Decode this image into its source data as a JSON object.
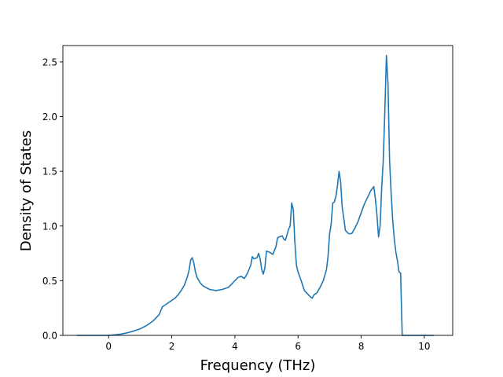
{
  "chart_data": {
    "type": "line",
    "title": "",
    "xlabel": "Frequency (THz)",
    "ylabel": "Density of States",
    "xlim": [
      -1.45,
      10.9
    ],
    "ylim": [
      0.0,
      2.65
    ],
    "xticks": [
      0,
      2,
      4,
      6,
      8,
      10
    ],
    "xtick_labels": [
      "0",
      "2",
      "4",
      "6",
      "8",
      "10"
    ],
    "yticks": [
      0.0,
      0.5,
      1.0,
      1.5,
      2.0,
      2.5
    ],
    "ytick_labels": [
      "0.0",
      "0.5",
      "1.0",
      "1.5",
      "2.0",
      "2.5"
    ],
    "grid": false,
    "legend": "none",
    "series": [
      {
        "color": "#1f77b4",
        "x": [
          -1.0,
          -0.5,
          0.0,
          0.2,
          0.4,
          0.6,
          0.8,
          1.0,
          1.2,
          1.4,
          1.6,
          1.7,
          1.8,
          1.9,
          2.0,
          2.1,
          2.2,
          2.3,
          2.4,
          2.5,
          2.55,
          2.6,
          2.65,
          2.7,
          2.75,
          2.8,
          2.9,
          3.0,
          3.2,
          3.4,
          3.6,
          3.8,
          3.9,
          4.0,
          4.1,
          4.2,
          4.3,
          4.4,
          4.5,
          4.55,
          4.6,
          4.7,
          4.75,
          4.8,
          4.85,
          4.9,
          4.95,
          5.0,
          5.1,
          5.2,
          5.3,
          5.35,
          5.4,
          5.5,
          5.55,
          5.6,
          5.7,
          5.75,
          5.8,
          5.85,
          5.9,
          5.95,
          6.0,
          6.1,
          6.2,
          6.3,
          6.4,
          6.45,
          6.5,
          6.6,
          6.7,
          6.8,
          6.9,
          6.95,
          7.0,
          7.05,
          7.1,
          7.15,
          7.2,
          7.25,
          7.3,
          7.35,
          7.4,
          7.45,
          7.5,
          7.6,
          7.7,
          7.8,
          7.9,
          8.0,
          8.1,
          8.2,
          8.3,
          8.4,
          8.45,
          8.5,
          8.55,
          8.6,
          8.65,
          8.7,
          8.75,
          8.8,
          8.85,
          8.9,
          8.95,
          9.0,
          9.05,
          9.1,
          9.15,
          9.2,
          9.25,
          9.3,
          9.35,
          9.4,
          9.45,
          9.6,
          10.0,
          10.3
        ],
        "y": [
          0.0,
          0.0,
          0.0,
          0.005,
          0.012,
          0.024,
          0.04,
          0.06,
          0.09,
          0.13,
          0.19,
          0.26,
          0.28,
          0.3,
          0.32,
          0.34,
          0.37,
          0.41,
          0.46,
          0.54,
          0.6,
          0.69,
          0.71,
          0.66,
          0.58,
          0.53,
          0.48,
          0.45,
          0.42,
          0.41,
          0.42,
          0.44,
          0.47,
          0.5,
          0.53,
          0.54,
          0.52,
          0.57,
          0.64,
          0.72,
          0.7,
          0.71,
          0.75,
          0.7,
          0.6,
          0.56,
          0.62,
          0.77,
          0.76,
          0.74,
          0.81,
          0.89,
          0.9,
          0.91,
          0.88,
          0.87,
          0.97,
          1.0,
          1.21,
          1.15,
          0.85,
          0.64,
          0.58,
          0.5,
          0.41,
          0.38,
          0.35,
          0.34,
          0.37,
          0.39,
          0.44,
          0.5,
          0.6,
          0.72,
          0.93,
          1.02,
          1.21,
          1.22,
          1.27,
          1.37,
          1.5,
          1.4,
          1.17,
          1.07,
          0.96,
          0.93,
          0.93,
          0.98,
          1.04,
          1.12,
          1.2,
          1.26,
          1.32,
          1.36,
          1.25,
          1.1,
          0.9,
          1.0,
          1.35,
          1.6,
          2.05,
          2.56,
          2.3,
          1.6,
          1.3,
          1.05,
          0.88,
          0.76,
          0.68,
          0.58,
          0.57,
          0.0,
          0.0,
          0.0,
          0.0,
          0.0,
          0.0,
          0.0
        ]
      }
    ]
  }
}
